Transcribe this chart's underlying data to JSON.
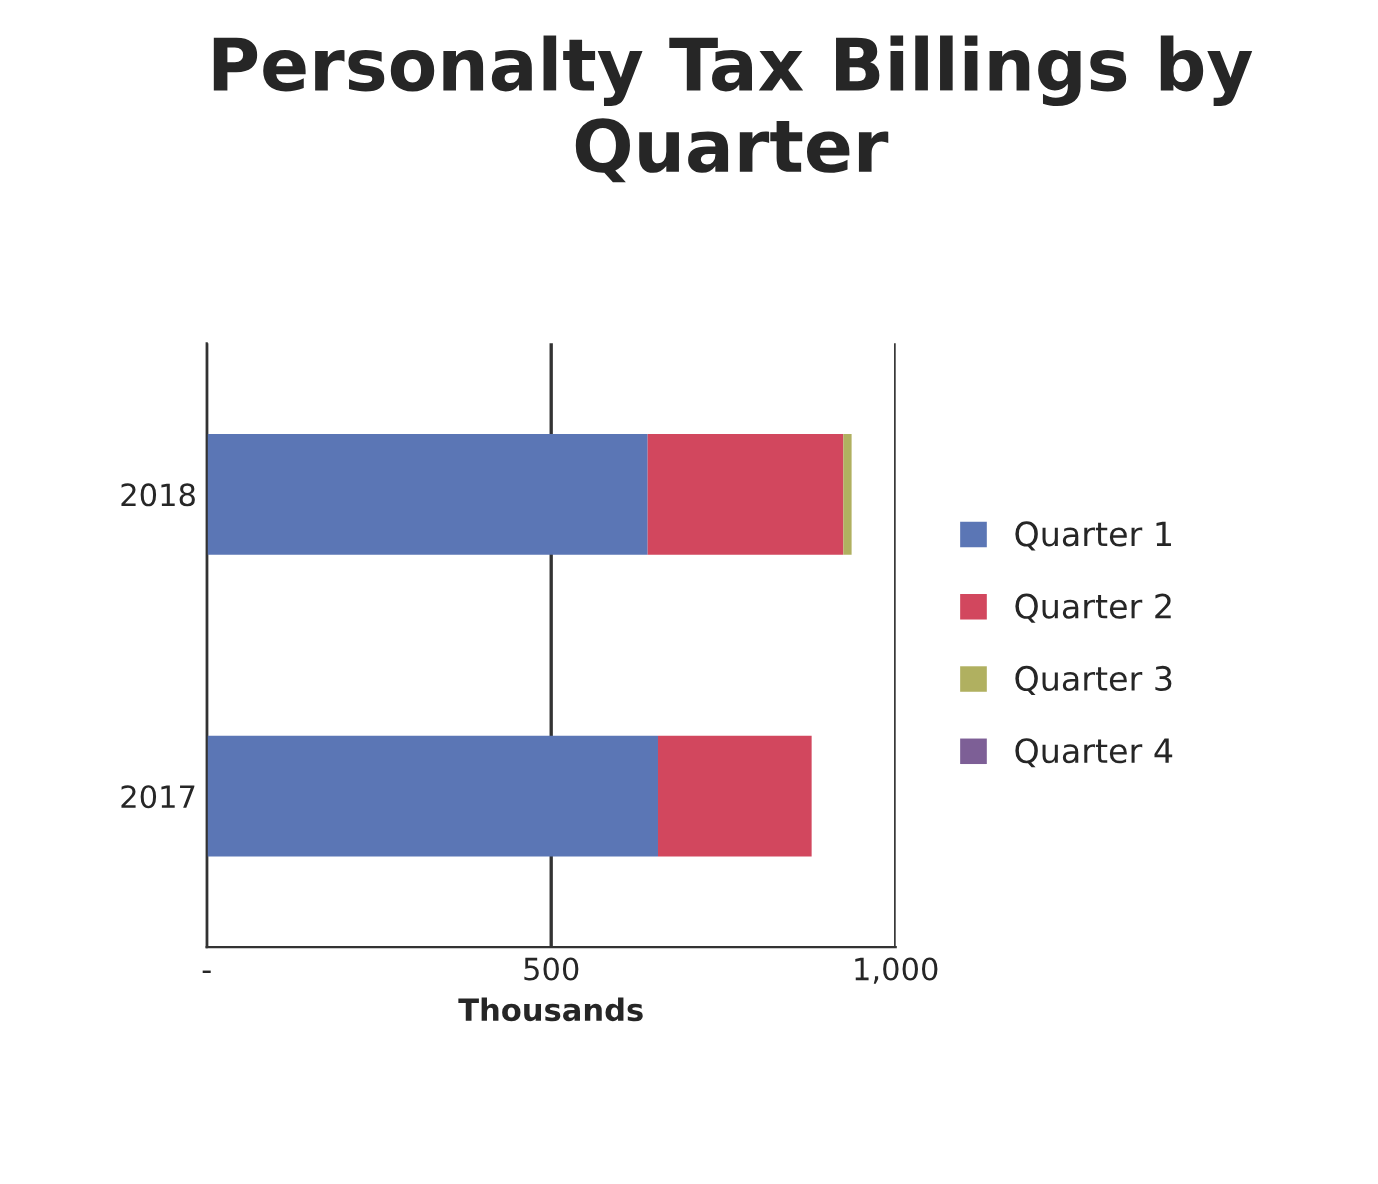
{
  "chart_data": {
    "type": "bar",
    "orientation": "horizontal",
    "stacked": true,
    "title": "Personalty Tax Billings by Quarter",
    "xlabel": "Thousands",
    "categories": [
      "2018",
      "2017"
    ],
    "series": [
      {
        "name": "Quarter 1",
        "color": "#5b76b5",
        "values": [
          640,
          655
        ]
      },
      {
        "name": "Quarter 2",
        "color": "#d2475e",
        "values": [
          284,
          223
        ]
      },
      {
        "name": "Quarter 3",
        "color": "#b0b060",
        "values": [
          12,
          null
        ]
      },
      {
        "name": "Quarter 4",
        "color": "#7d5f96",
        "values": [
          null,
          null
        ]
      }
    ],
    "xlim": [
      0,
      1000
    ],
    "xticks": [
      {
        "value": 0,
        "label": "-"
      },
      {
        "value": 500,
        "label": "500"
      },
      {
        "value": 1000,
        "label": "1,000"
      }
    ],
    "grid": "x",
    "legend": "right"
  }
}
